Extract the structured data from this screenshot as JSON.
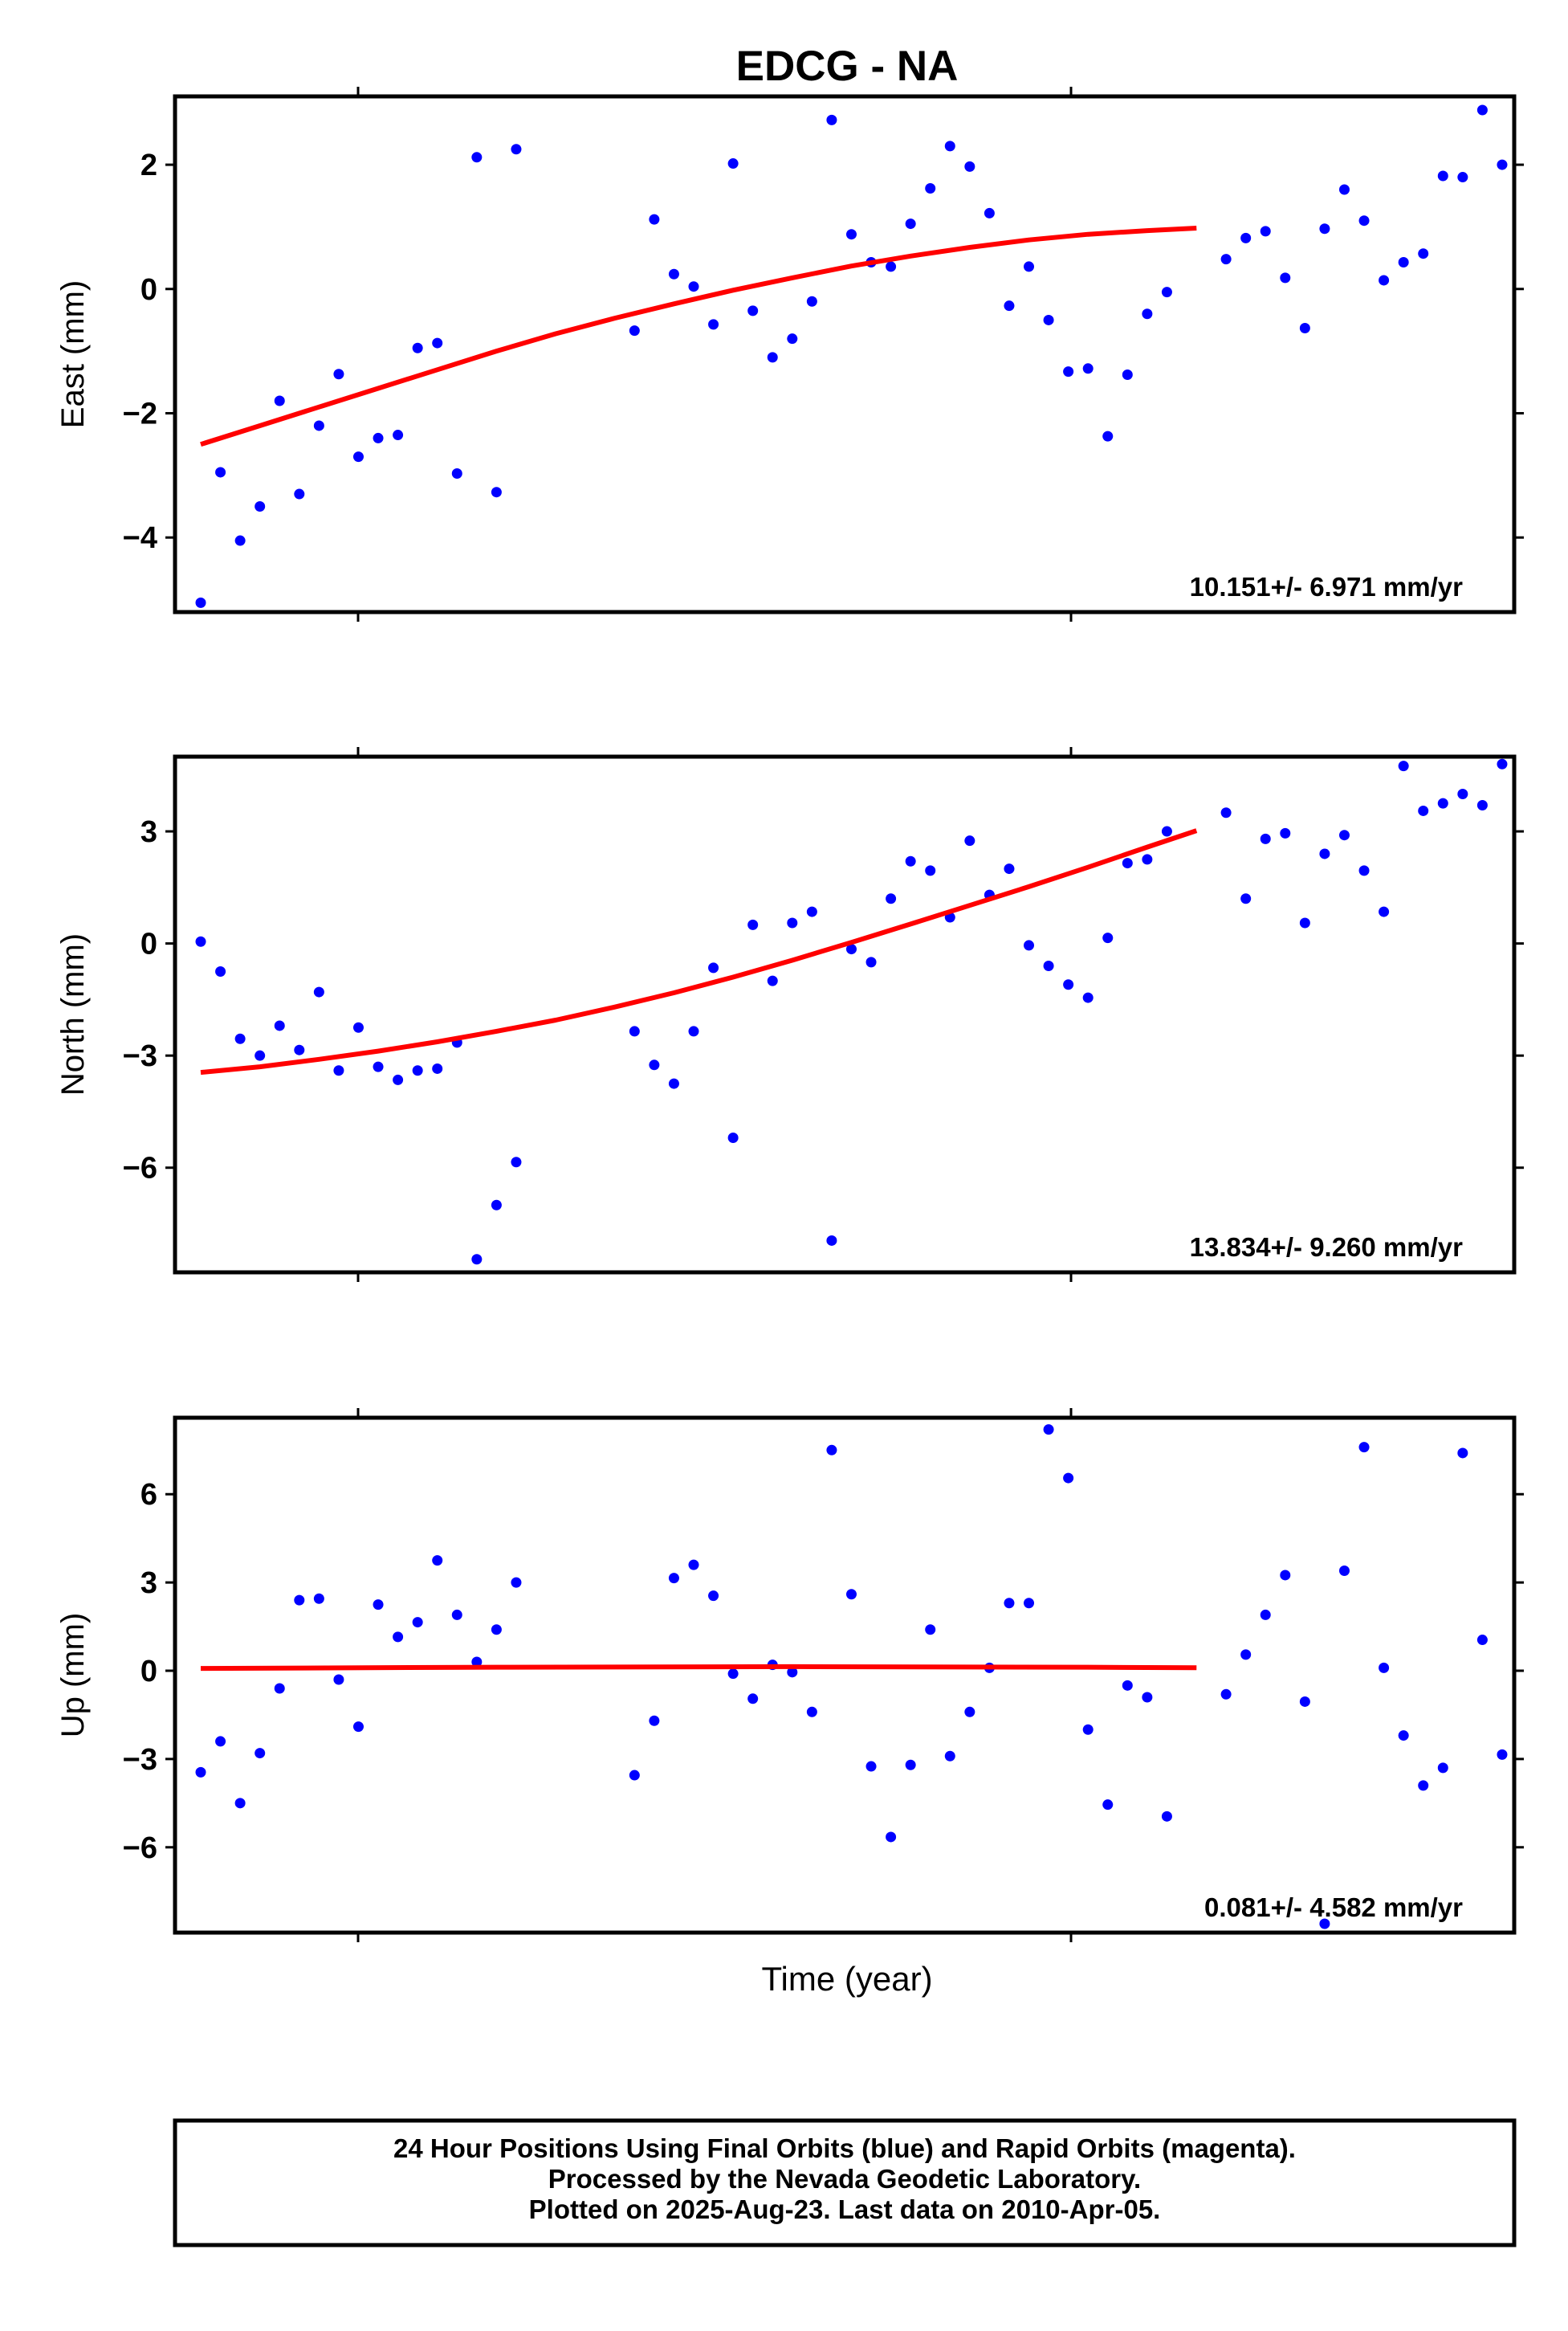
{
  "chart_data": {
    "type": "scatter",
    "title": "EDCG - NA",
    "xlabel": "Time (year)",
    "colors": {
      "points": "#0000ff",
      "fit": "#ff0000",
      "frame": "#000000"
    },
    "panels": [
      {
        "ylabel": "East (mm)",
        "ylim": [
          -5.2,
          3.1
        ],
        "yticks": [
          2,
          0,
          -2,
          -4
        ],
        "ytick_labels": [
          "2",
          "0",
          "−2",
          "−4"
        ],
        "rate_label": "10.151+/- 6.971 mm/yr",
        "fit": [
          [
            0,
            -2.5
          ],
          [
            6,
            -2.2
          ],
          [
            12,
            -1.9
          ],
          [
            18,
            -1.6
          ],
          [
            24,
            -1.3
          ],
          [
            30,
            -1.0
          ],
          [
            36,
            -0.72
          ],
          [
            42,
            -0.47
          ],
          [
            48,
            -0.24
          ],
          [
            54,
            -0.02
          ],
          [
            60,
            0.18
          ],
          [
            66,
            0.37
          ],
          [
            72,
            0.53
          ],
          [
            78,
            0.67
          ],
          [
            84,
            0.79
          ],
          [
            90,
            0.88
          ],
          [
            96,
            0.94
          ],
          [
            101,
            0.98
          ]
        ],
        "points": [
          [
            0,
            -5.05
          ],
          [
            2,
            -2.95
          ],
          [
            4,
            -4.05
          ],
          [
            6,
            -3.5
          ],
          [
            8,
            -1.8
          ],
          [
            10,
            -3.3
          ],
          [
            12,
            -2.2
          ],
          [
            14,
            -1.37
          ],
          [
            16,
            -2.7
          ],
          [
            18,
            -2.4
          ],
          [
            20,
            -2.35
          ],
          [
            22,
            -0.95
          ],
          [
            24,
            -0.87
          ],
          [
            26,
            -2.97
          ],
          [
            28,
            2.12
          ],
          [
            30,
            -3.27
          ],
          [
            32,
            2.25
          ],
          [
            44,
            -0.67
          ],
          [
            46,
            1.12
          ],
          [
            48,
            0.24
          ],
          [
            50,
            0.04
          ],
          [
            52,
            -0.57
          ],
          [
            54,
            2.02
          ],
          [
            56,
            -0.35
          ],
          [
            58,
            -1.1
          ],
          [
            60,
            -0.8
          ],
          [
            62,
            -0.2
          ],
          [
            64,
            2.72
          ],
          [
            66,
            0.88
          ],
          [
            68,
            0.43
          ],
          [
            70,
            0.36
          ],
          [
            72,
            1.05
          ],
          [
            74,
            1.62
          ],
          [
            76,
            2.3
          ],
          [
            78,
            1.97
          ],
          [
            80,
            1.22
          ],
          [
            82,
            -0.27
          ],
          [
            84,
            0.36
          ],
          [
            86,
            -0.5
          ],
          [
            88,
            -1.33
          ],
          [
            90,
            -1.28
          ],
          [
            92,
            -2.37
          ],
          [
            94,
            -1.38
          ],
          [
            96,
            -0.4
          ],
          [
            98,
            -0.05
          ],
          [
            104,
            0.48
          ],
          [
            106,
            0.82
          ],
          [
            108,
            0.93
          ],
          [
            110,
            0.18
          ],
          [
            112,
            -0.63
          ],
          [
            114,
            0.97
          ],
          [
            116,
            1.6
          ],
          [
            118,
            1.1
          ],
          [
            120,
            0.14
          ],
          [
            122,
            0.43
          ],
          [
            124,
            0.57
          ],
          [
            126,
            1.82
          ],
          [
            128,
            1.8
          ],
          [
            130,
            2.88
          ],
          [
            132,
            2.0
          ]
        ]
      },
      {
        "ylabel": "North (mm)",
        "ylim": [
          -8.8,
          5.0
        ],
        "yticks": [
          3,
          0,
          -3,
          -6
        ],
        "ytick_labels": [
          "3",
          "0",
          "−3",
          "−6"
        ],
        "rate_label": "13.834+/- 9.260 mm/yr",
        "fit": [
          [
            0,
            -3.45
          ],
          [
            6,
            -3.3
          ],
          [
            12,
            -3.1
          ],
          [
            18,
            -2.88
          ],
          [
            24,
            -2.63
          ],
          [
            30,
            -2.35
          ],
          [
            36,
            -2.05
          ],
          [
            42,
            -1.7
          ],
          [
            48,
            -1.32
          ],
          [
            54,
            -0.9
          ],
          [
            60,
            -0.45
          ],
          [
            66,
            0.03
          ],
          [
            72,
            0.52
          ],
          [
            78,
            1.02
          ],
          [
            84,
            1.52
          ],
          [
            90,
            2.04
          ],
          [
            96,
            2.58
          ],
          [
            101,
            3.02
          ]
        ],
        "points": [
          [
            0,
            0.05
          ],
          [
            2,
            -0.75
          ],
          [
            4,
            -2.55
          ],
          [
            6,
            -3.0
          ],
          [
            8,
            -2.2
          ],
          [
            10,
            -2.85
          ],
          [
            12,
            -1.3
          ],
          [
            14,
            -3.4
          ],
          [
            16,
            -2.25
          ],
          [
            18,
            -3.3
          ],
          [
            20,
            -3.65
          ],
          [
            22,
            -3.4
          ],
          [
            24,
            -3.35
          ],
          [
            26,
            -2.65
          ],
          [
            28,
            -8.45
          ],
          [
            30,
            -7.0
          ],
          [
            32,
            -5.85
          ],
          [
            44,
            -2.35
          ],
          [
            46,
            -3.25
          ],
          [
            48,
            -3.75
          ],
          [
            50,
            -2.35
          ],
          [
            52,
            -0.65
          ],
          [
            54,
            -5.2
          ],
          [
            56,
            0.5
          ],
          [
            58,
            -1.0
          ],
          [
            60,
            0.55
          ],
          [
            62,
            0.85
          ],
          [
            64,
            -7.95
          ],
          [
            66,
            -0.15
          ],
          [
            68,
            -0.5
          ],
          [
            70,
            1.2
          ],
          [
            72,
            2.2
          ],
          [
            74,
            1.95
          ],
          [
            76,
            0.7
          ],
          [
            78,
            2.75
          ],
          [
            80,
            1.3
          ],
          [
            82,
            2.0
          ],
          [
            84,
            -0.05
          ],
          [
            86,
            -0.6
          ],
          [
            88,
            -1.1
          ],
          [
            90,
            -1.45
          ],
          [
            92,
            0.15
          ],
          [
            94,
            2.15
          ],
          [
            96,
            2.25
          ],
          [
            98,
            3.0
          ],
          [
            104,
            3.5
          ],
          [
            106,
            1.2
          ],
          [
            108,
            2.8
          ],
          [
            110,
            2.95
          ],
          [
            112,
            0.55
          ],
          [
            114,
            2.4
          ],
          [
            116,
            2.9
          ],
          [
            118,
            1.95
          ],
          [
            120,
            0.85
          ],
          [
            122,
            4.75
          ],
          [
            124,
            3.55
          ],
          [
            126,
            3.75
          ],
          [
            128,
            4.0
          ],
          [
            130,
            3.7
          ],
          [
            132,
            4.8
          ]
        ]
      },
      {
        "ylabel": "Up (mm)",
        "ylim": [
          -8.9,
          8.6
        ],
        "yticks": [
          6,
          3,
          0,
          -3,
          -6
        ],
        "ytick_labels": [
          "6",
          "3",
          "0",
          "−3",
          "−6"
        ],
        "rate_label": "0.081+/- 4.582 mm/yr",
        "fit": [
          [
            0,
            0.08
          ],
          [
            30,
            0.12
          ],
          [
            60,
            0.14
          ],
          [
            90,
            0.12
          ],
          [
            101,
            0.1
          ]
        ],
        "points": [
          [
            0,
            -3.45
          ],
          [
            2,
            -2.4
          ],
          [
            4,
            -4.5
          ],
          [
            6,
            -2.8
          ],
          [
            8,
            -0.6
          ],
          [
            10,
            2.4
          ],
          [
            12,
            2.45
          ],
          [
            14,
            -0.3
          ],
          [
            16,
            -1.9
          ],
          [
            18,
            2.25
          ],
          [
            20,
            1.15
          ],
          [
            22,
            1.65
          ],
          [
            24,
            3.75
          ],
          [
            26,
            1.9
          ],
          [
            28,
            0.3
          ],
          [
            30,
            1.4
          ],
          [
            32,
            3.0
          ],
          [
            44,
            -3.55
          ],
          [
            46,
            -1.7
          ],
          [
            48,
            3.15
          ],
          [
            50,
            3.6
          ],
          [
            52,
            2.55
          ],
          [
            54,
            -0.1
          ],
          [
            56,
            -0.95
          ],
          [
            58,
            0.2
          ],
          [
            60,
            -0.05
          ],
          [
            62,
            -1.4
          ],
          [
            64,
            7.5
          ],
          [
            66,
            2.6
          ],
          [
            68,
            -3.25
          ],
          [
            70,
            -5.65
          ],
          [
            72,
            -3.2
          ],
          [
            74,
            1.4
          ],
          [
            76,
            -2.9
          ],
          [
            78,
            -1.4
          ],
          [
            80,
            0.1
          ],
          [
            82,
            2.3
          ],
          [
            84,
            2.3
          ],
          [
            86,
            8.2
          ],
          [
            88,
            6.55
          ],
          [
            90,
            -2.0
          ],
          [
            92,
            -4.55
          ],
          [
            94,
            -0.5
          ],
          [
            96,
            -0.9
          ],
          [
            98,
            -4.95
          ],
          [
            104,
            -0.8
          ],
          [
            106,
            0.55
          ],
          [
            108,
            1.9
          ],
          [
            110,
            3.25
          ],
          [
            112,
            -1.05
          ],
          [
            114,
            -8.6
          ],
          [
            116,
            3.4
          ],
          [
            118,
            7.6
          ],
          [
            120,
            0.1
          ],
          [
            122,
            -2.2
          ],
          [
            124,
            -3.9
          ],
          [
            126,
            -3.3
          ],
          [
            128,
            7.4
          ],
          [
            130,
            1.05
          ],
          [
            132,
            -2.85
          ]
        ]
      }
    ],
    "footer_lines": [
      "24 Hour Positions Using Final Orbits (blue) and Rapid Orbits (magenta).",
      "Processed by the Nevada Geodetic Laboratory.",
      "Plotted on 2025-Aug-23. Last data on 2010-Apr-05."
    ]
  }
}
